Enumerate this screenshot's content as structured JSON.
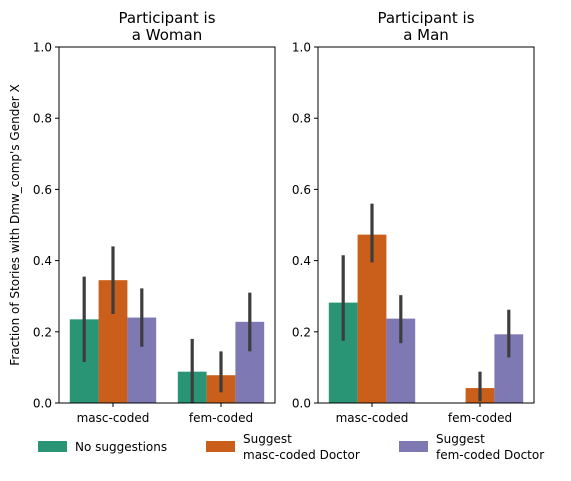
{
  "chart_data": {
    "type": "bar",
    "ylabel": "Fraction of Stories with Dmw_comp's Gender X",
    "ylim": [
      0,
      1.0
    ],
    "yticks": [
      "0.0",
      "0.2",
      "0.4",
      "0.6",
      "0.8",
      "1.0"
    ],
    "ytick_values": [
      0,
      0.2,
      0.4,
      0.6,
      0.8,
      1.0
    ],
    "categories": [
      "masc-coded",
      "fem-coded"
    ],
    "grid": false,
    "legend_position": "bottom",
    "series_meta": [
      {
        "name": "No suggestions",
        "color": "#2a9575"
      },
      {
        "name": "Suggest masc-coded Doctor",
        "name_lines": [
          "Suggest",
          "masc-coded Doctor"
        ],
        "color": "#c95f1a"
      },
      {
        "name": "Suggest fem-coded Doctor",
        "name_lines": [
          "Suggest",
          "fem-coded Doctor"
        ],
        "color": "#7e78b3"
      }
    ],
    "panels": [
      {
        "title_lines": [
          "Participant is",
          "a Woman"
        ],
        "series": [
          {
            "name": "No suggestions",
            "values": [
              0.235,
              0.088
            ],
            "ci": [
              [
                0.115,
                0.355
              ],
              [
                0.0,
                0.18
              ]
            ]
          },
          {
            "name": "Suggest masc-coded Doctor",
            "values": [
              0.345,
              0.078
            ],
            "ci": [
              [
                0.25,
                0.44
              ],
              [
                0.03,
                0.145
              ]
            ]
          },
          {
            "name": "Suggest fem-coded Doctor",
            "values": [
              0.24,
              0.228
            ],
            "ci": [
              [
                0.158,
                0.322
              ],
              [
                0.145,
                0.31
              ]
            ]
          }
        ]
      },
      {
        "title_lines": [
          "Participant is",
          "a Man"
        ],
        "series": [
          {
            "name": "No suggestions",
            "values": [
              0.282,
              0.0
            ],
            "ci": [
              [
                0.175,
                0.415
              ],
              [
                0.0,
                0.0
              ]
            ]
          },
          {
            "name": "Suggest masc-coded Doctor",
            "values": [
              0.473,
              0.042
            ],
            "ci": [
              [
                0.395,
                0.56
              ],
              [
                0.005,
                0.088
              ]
            ]
          },
          {
            "name": "Suggest fem-coded Doctor",
            "values": [
              0.237,
              0.193
            ],
            "ci": [
              [
                0.168,
                0.303
              ],
              [
                0.128,
                0.262
              ]
            ]
          }
        ]
      }
    ]
  }
}
